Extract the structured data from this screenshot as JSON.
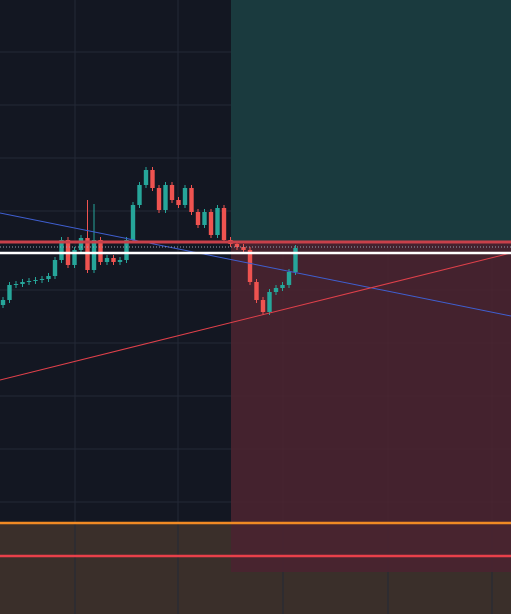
{
  "chart_data": {
    "type": "candlestick",
    "open": [
      309,
      314,
      329,
      330,
      332,
      333,
      334,
      335,
      338,
      354,
      374,
      349,
      364,
      376,
      344,
      374,
      352,
      356,
      352,
      354,
      374,
      409,
      429,
      444,
      426,
      404,
      429,
      414,
      409,
      426,
      402,
      389,
      402,
      379,
      406,
      374,
      370,
      367,
      364,
      332,
      314,
      302,
      322,
      326,
      329,
      342
    ],
    "high": [
      317,
      332,
      333,
      335,
      336,
      337,
      338,
      341,
      357,
      377,
      377,
      367,
      379,
      414,
      410,
      377,
      359,
      359,
      357,
      377,
      412,
      432,
      447,
      447,
      429,
      432,
      432,
      417,
      429,
      429,
      405,
      405,
      405,
      409,
      409,
      377,
      373,
      370,
      367,
      335,
      317,
      325,
      329,
      332,
      345,
      369
    ],
    "low": [
      306,
      311,
      326,
      327,
      329,
      330,
      331,
      332,
      335,
      351,
      346,
      346,
      361,
      341,
      341,
      349,
      349,
      349,
      349,
      351,
      371,
      406,
      426,
      423,
      401,
      401,
      411,
      406,
      406,
      399,
      386,
      386,
      376,
      376,
      371,
      367,
      364,
      361,
      329,
      311,
      299,
      299,
      319,
      323,
      326,
      339
    ],
    "close": [
      314,
      329,
      330,
      332,
      333,
      334,
      335,
      338,
      354,
      374,
      349,
      364,
      376,
      344,
      374,
      352,
      356,
      352,
      354,
      374,
      409,
      429,
      444,
      426,
      404,
      429,
      414,
      409,
      426,
      402,
      389,
      402,
      379,
      406,
      374,
      370,
      367,
      364,
      332,
      314,
      302,
      322,
      326,
      329,
      342,
      366
    ],
    "ylim": [
      0,
      614
    ],
    "up_color": "#26a69a",
    "down_color": "#ef5350"
  }
}
